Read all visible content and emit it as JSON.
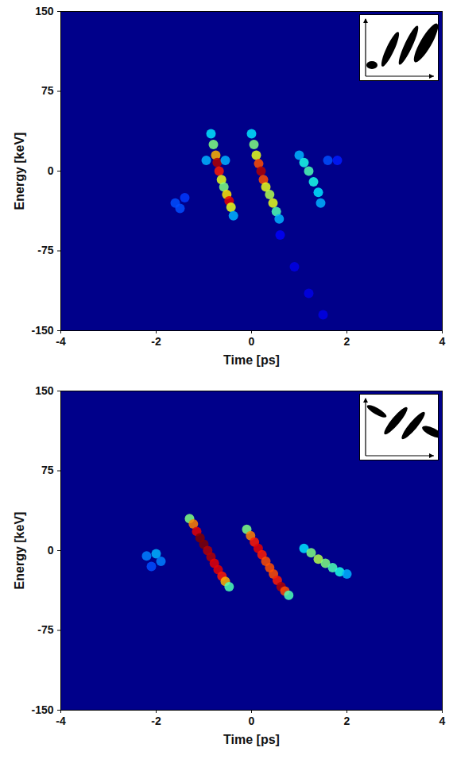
{
  "chart_data": [
    {
      "type": "heatmap",
      "x_label": "Time [ps]",
      "y_label": "Energy [keV]",
      "xlim": [
        -4,
        4
      ],
      "xticks": [
        -4,
        -2,
        0,
        2,
        4
      ],
      "ylim": [
        -150,
        150
      ],
      "yticks": [
        150,
        75,
        0,
        -75,
        -150
      ],
      "color_range": [
        0,
        1
      ],
      "cells": [
        [
          -0.85,
          35,
          0.35
        ],
        [
          -0.8,
          25,
          0.5
        ],
        [
          -0.75,
          15,
          0.7
        ],
        [
          -0.72,
          8,
          0.95
        ],
        [
          -0.68,
          0,
          0.85
        ],
        [
          -0.63,
          -8,
          0.6
        ],
        [
          -0.58,
          -15,
          0.5
        ],
        [
          -0.52,
          -22,
          0.65
        ],
        [
          -0.47,
          -28,
          0.9
        ],
        [
          -0.43,
          -34,
          0.6
        ],
        [
          -0.38,
          -42,
          0.3
        ],
        [
          -0.95,
          10,
          0.3
        ],
        [
          -0.55,
          10,
          0.3
        ],
        [
          0.0,
          35,
          0.35
        ],
        [
          0.05,
          25,
          0.5
        ],
        [
          0.1,
          15,
          0.6
        ],
        [
          0.15,
          7,
          0.8
        ],
        [
          0.2,
          0,
          0.95
        ],
        [
          0.25,
          -8,
          0.8
        ],
        [
          0.3,
          -15,
          0.6
        ],
        [
          0.38,
          -22,
          0.55
        ],
        [
          0.45,
          -30,
          0.6
        ],
        [
          0.52,
          -38,
          0.45
        ],
        [
          0.58,
          -45,
          0.3
        ],
        [
          1.0,
          15,
          0.3
        ],
        [
          1.1,
          8,
          0.4
        ],
        [
          1.2,
          0,
          0.45
        ],
        [
          1.3,
          -10,
          0.4
        ],
        [
          1.4,
          -20,
          0.35
        ],
        [
          1.45,
          -30,
          0.3
        ],
        [
          1.6,
          10,
          0.2
        ],
        [
          1.8,
          10,
          0.15
        ],
        [
          -1.6,
          -30,
          0.2
        ],
        [
          -1.5,
          -35,
          0.2
        ],
        [
          -1.4,
          -25,
          0.18
        ],
        [
          0.6,
          -60,
          0.12
        ],
        [
          0.9,
          -90,
          0.1
        ],
        [
          1.2,
          -115,
          0.1
        ],
        [
          1.5,
          -135,
          0.1
        ]
      ]
    },
    {
      "type": "heatmap",
      "x_label": "Time [ps]",
      "y_label": "Energy [keV]",
      "xlim": [
        -4,
        4
      ],
      "xticks": [
        -4,
        -2,
        0,
        2,
        4
      ],
      "ylim": [
        -150,
        150
      ],
      "yticks": [
        150,
        75,
        0,
        -75,
        -150
      ],
      "color_range": [
        0,
        1
      ],
      "cells": [
        [
          -1.3,
          30,
          0.5
        ],
        [
          -1.22,
          25,
          0.75
        ],
        [
          -1.15,
          18,
          0.9
        ],
        [
          -1.08,
          12,
          1.0
        ],
        [
          -1.0,
          6,
          1.0
        ],
        [
          -0.92,
          0,
          0.95
        ],
        [
          -0.85,
          -6,
          0.95
        ],
        [
          -0.78,
          -12,
          0.9
        ],
        [
          -0.7,
          -18,
          0.9
        ],
        [
          -0.62,
          -24,
          0.85
        ],
        [
          -0.55,
          -29,
          0.7
        ],
        [
          -0.47,
          -34,
          0.45
        ],
        [
          -0.1,
          20,
          0.5
        ],
        [
          -0.02,
          14,
          0.75
        ],
        [
          0.06,
          8,
          0.85
        ],
        [
          0.14,
          2,
          0.9
        ],
        [
          0.22,
          -4,
          0.85
        ],
        [
          0.3,
          -10,
          0.8
        ],
        [
          0.38,
          -16,
          0.8
        ],
        [
          0.46,
          -22,
          0.8
        ],
        [
          0.54,
          -28,
          0.85
        ],
        [
          0.62,
          -34,
          0.95
        ],
        [
          0.7,
          -38,
          0.8
        ],
        [
          0.78,
          -42,
          0.45
        ],
        [
          1.1,
          2,
          0.35
        ],
        [
          1.25,
          -2,
          0.5
        ],
        [
          1.4,
          -8,
          0.55
        ],
        [
          1.55,
          -12,
          0.5
        ],
        [
          1.7,
          -16,
          0.45
        ],
        [
          1.85,
          -20,
          0.4
        ],
        [
          2.0,
          -22,
          0.3
        ],
        [
          -2.2,
          -5,
          0.25
        ],
        [
          -2.0,
          -3,
          0.3
        ],
        [
          -1.9,
          -10,
          0.25
        ],
        [
          -2.1,
          -15,
          0.2
        ]
      ]
    }
  ]
}
